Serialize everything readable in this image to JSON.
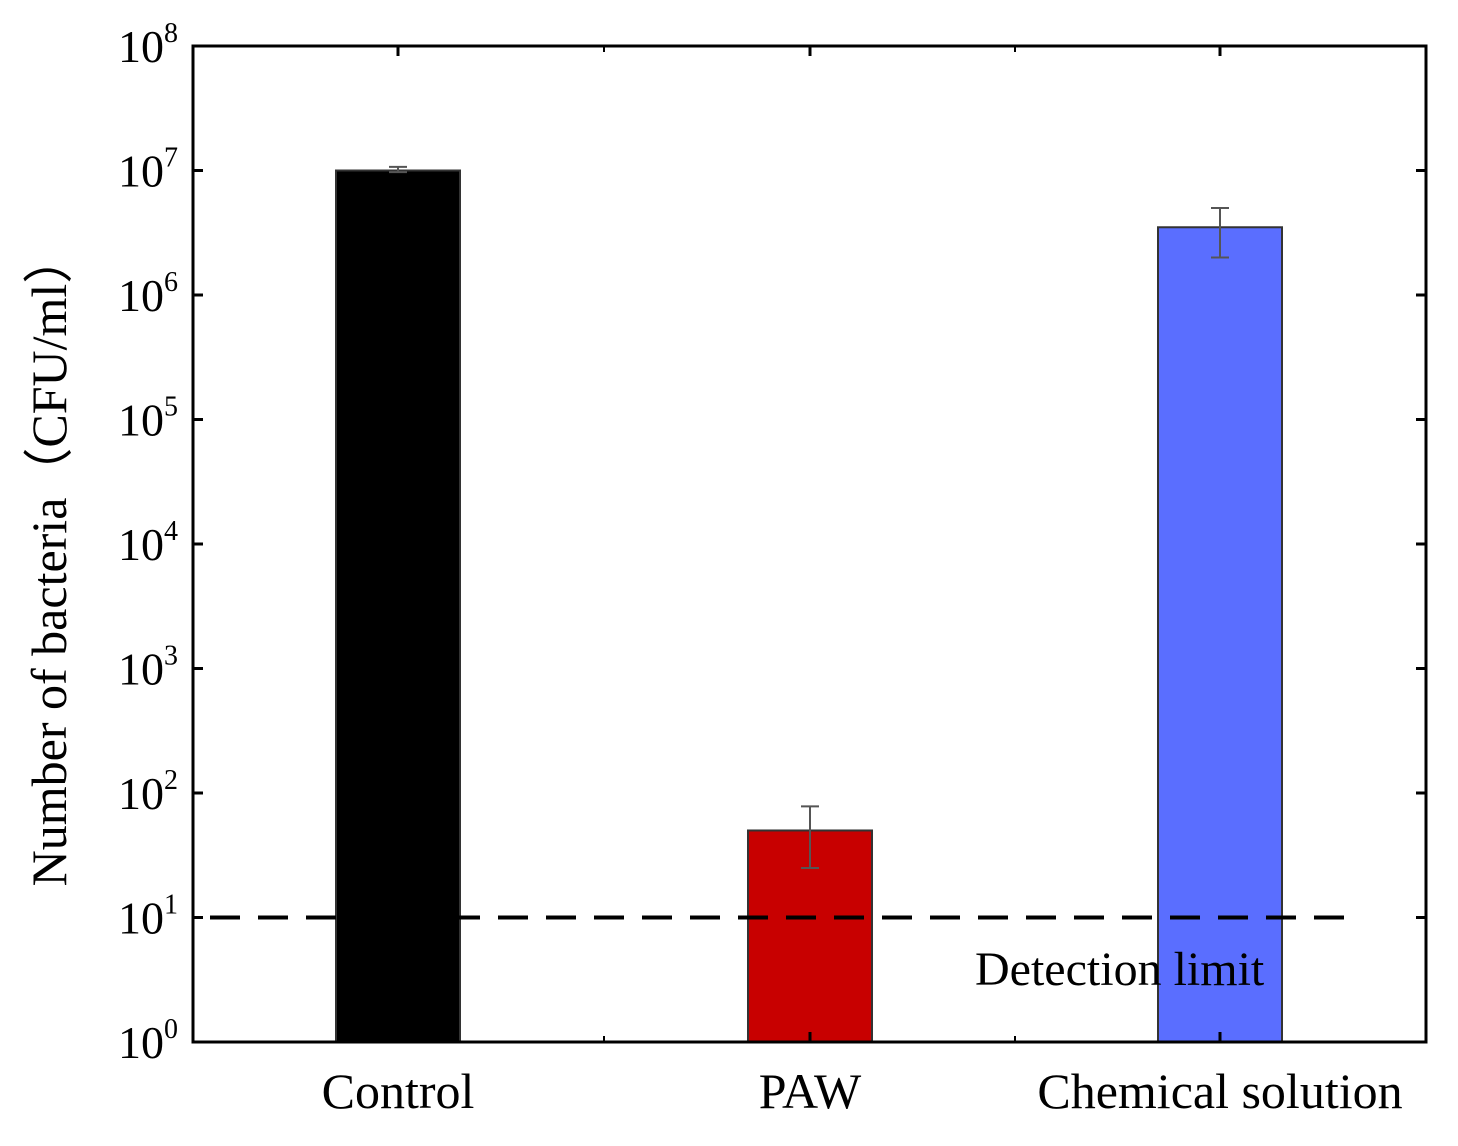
{
  "chart_data": {
    "type": "bar",
    "title": "",
    "xlabel": "",
    "ylabel": "Number of bacteria（CFU/ml）",
    "yscale": "log",
    "ylim": [
      1,
      100000000
    ],
    "ytick_exponents": [
      0,
      1,
      2,
      3,
      4,
      5,
      6,
      7,
      8
    ],
    "ytick_base": "10",
    "categories": [
      "Control",
      "PAW",
      "Chemical solution"
    ],
    "values": [
      10000000,
      50,
      3500000
    ],
    "error_low": [
      9700000,
      25,
      2000000
    ],
    "error_high": [
      10700000,
      78,
      5000000
    ],
    "colors": [
      "#000000",
      "#c80000",
      "#5a6eff"
    ],
    "reference_line": {
      "value": 10,
      "label": "Detection limit",
      "style": "dashed"
    },
    "grid": false
  }
}
